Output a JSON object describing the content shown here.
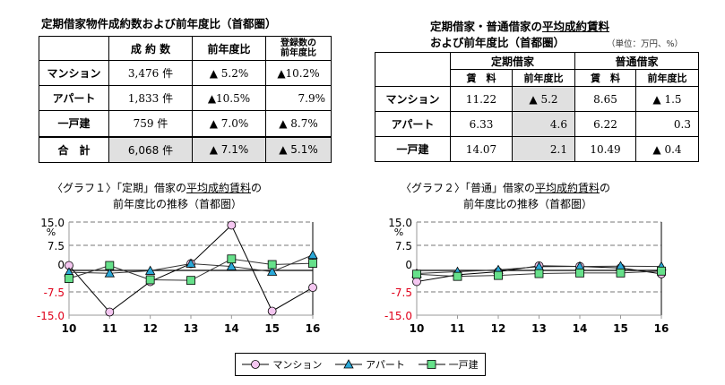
{
  "table1": {
    "title": "定期借家物件成約数および前年度比（首都圏）",
    "headers": [
      "",
      "成 約 数",
      "前年度比",
      "登録数の\n前年度比"
    ],
    "rows": [
      [
        "マンション",
        "3,476 件",
        "▲ 5.2%",
        "▲10.2%"
      ],
      [
        "アパート",
        "1,833 件",
        "▲10.5%",
        "7.9%"
      ],
      [
        "一戸建",
        "759 件",
        "▲ 7.0%",
        "▲ 8.7%"
      ],
      [
        "合　計",
        "6,068 件",
        "▲ 7.1%",
        "▲ 5.1%"
      ]
    ]
  },
  "table2": {
    "title_line1_pre": "定期借家・普通借家の",
    "title_line1_u": "平均成約賃料",
    "title_line2": "および前年度比（首都圏）",
    "unit": "（単位：万円、%）",
    "group_headers": [
      "定期借家",
      "普通借家"
    ],
    "sub_headers": [
      "賃　料",
      "前年度比",
      "賃　料",
      "前年度比"
    ],
    "rows": [
      [
        "マンション",
        "11.22",
        "▲ 5.2",
        "8.65",
        "▲ 1.5"
      ],
      [
        "アパート",
        "6.33",
        "4.6",
        "6.22",
        "0.3"
      ],
      [
        "一戸建",
        "14.07",
        "2.1",
        "10.49",
        "▲ 0.4"
      ]
    ]
  },
  "legend": [
    "マンション",
    "アパート",
    "一戸建"
  ],
  "colors": {
    "mansion": "#f4c6f0",
    "apart": "#2aa8d8",
    "house": "#66e08a",
    "neg_label": "#e0001a"
  },
  "chart_data": [
    {
      "type": "line",
      "title_prefix": "〈グラフ１〉「定期」借家の",
      "title_u": "平均成約賃料",
      "title_suffix": "の",
      "title_line2": "前年度比の推移（首都圏）",
      "ylabel": "%",
      "ylim": [
        -15,
        15
      ],
      "yticks": [
        "15.0",
        "7.5",
        "0",
        "-7.5",
        "-15.0"
      ],
      "ytick_values": [
        15,
        7.5,
        0,
        -7.5,
        -15
      ],
      "categories": [
        "10",
        "11",
        "12",
        "13",
        "14",
        "15",
        "16"
      ],
      "grid": true,
      "series": [
        {
          "name": "マンション",
          "values": [
            1.0,
            -14.0,
            -4.2,
            1.6,
            14.0,
            -13.7,
            -6.1
          ]
        },
        {
          "name": "アパート",
          "values": [
            -1.2,
            -1.5,
            -0.7,
            1.6,
            0.7,
            -1.0,
            4.4
          ]
        },
        {
          "name": "一戸建",
          "values": [
            -3.2,
            1.0,
            -3.6,
            -3.8,
            3.1,
            1.3,
            1.7
          ]
        }
      ]
    },
    {
      "type": "line",
      "title_prefix": "〈グラフ２〉「普通」借家の",
      "title_u": "平均成約賃料",
      "title_suffix": "の",
      "title_line2": "前年度比の推移（首都圏）",
      "ylabel": "%",
      "ylim": [
        -15,
        15
      ],
      "yticks": [
        "15.0",
        "7.5",
        "0",
        "-7.5",
        "-15.0"
      ],
      "ytick_values": [
        15,
        7.5,
        0,
        -7.5,
        -15
      ],
      "categories": [
        "10",
        "11",
        "12",
        "13",
        "14",
        "15",
        "16"
      ],
      "grid": true,
      "series": [
        {
          "name": "マンション",
          "values": [
            -4.2,
            -2.0,
            -1.0,
            0.9,
            0.7,
            0.2,
            -1.7
          ]
        },
        {
          "name": "アパート",
          "values": [
            -1.6,
            -1.0,
            -0.4,
            0.6,
            0.7,
            0.8,
            0.7
          ]
        },
        {
          "name": "一戸建",
          "values": [
            -1.8,
            -2.5,
            -2.2,
            -1.6,
            -1.4,
            -1.4,
            -0.8
          ]
        }
      ]
    }
  ]
}
